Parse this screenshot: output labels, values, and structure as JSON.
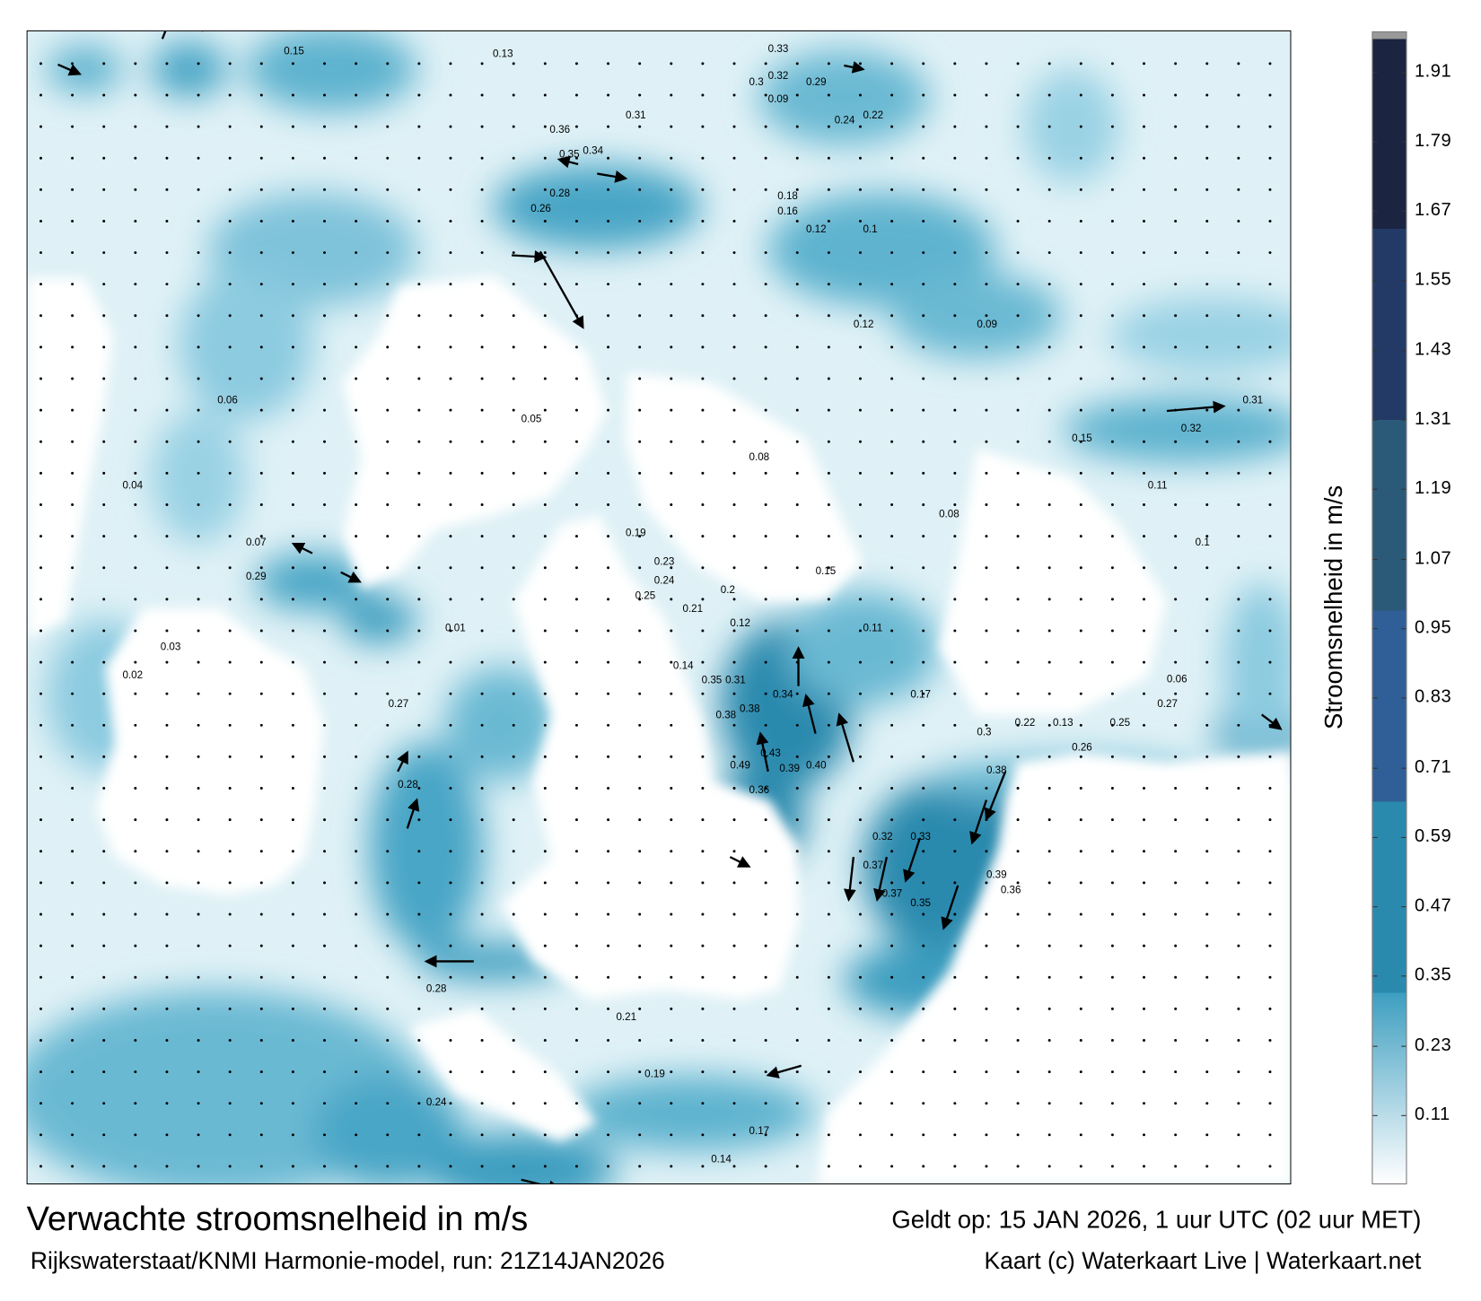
{
  "title": "Verwachte stroomsnelheid in m/s",
  "subtitle": "Rijkswaterstaat/KNMI Harmonie-model, run: 21Z14JAN2026",
  "valid_time": "Geldt op: 15 JAN 2026, 1 uur UTC (02 uur MET)",
  "credit": "Kaart (c) Waterkaart Live | Waterkaart.net",
  "colorbar": {
    "label": "Stroomsnelheid in m/s",
    "ticks": [
      "1.91",
      "1.79",
      "1.67",
      "1.55",
      "1.43",
      "1.31",
      "1.19",
      "1.07",
      "0.95",
      "0.83",
      "0.71",
      "0.59",
      "0.47",
      "0.35",
      "0.23",
      "0.11"
    ],
    "range": [
      0,
      1.97
    ],
    "colors": {
      "low": "#ffffff",
      "light": "#3d9ec0",
      "band1": "#2a8aae",
      "band2": "#2f5f96",
      "band3": "#2a5a78",
      "band4": "#233a66",
      "band5": "#1b2440",
      "cap": "#999999"
    }
  },
  "map": {
    "land_color": "#ffffff",
    "arrow_color": "#000000",
    "speed_labels": [
      "0.15",
      "0.13",
      "0.33",
      "0.32",
      "0.3",
      "0.09",
      "0.29",
      "0.36",
      "0.31",
      "0.35",
      "0.34",
      "0.22",
      "0.24",
      "0.28",
      "0.26",
      "0.18",
      "0.16",
      "0.1",
      "0.12",
      "0.38",
      "0.35",
      "0.31",
      "0.34",
      "0.38",
      "0.43",
      "0.39",
      "0.49",
      "0.40",
      "0.36",
      "0.28",
      "0.27",
      "0.29",
      "0.37",
      "0.38",
      "0.32",
      "0.33",
      "0.35",
      "0.37",
      "0.39",
      "0.36",
      "0.14",
      "0.12",
      "0.23",
      "0.19",
      "0.2",
      "0.21",
      "0.24",
      "0.25",
      "0.15",
      "0.11",
      "0.08",
      "0.05",
      "0.02",
      "0.03",
      "0.04",
      "0.06",
      "0.07",
      "0.01",
      "0.17",
      "0.22",
      "0.13",
      "0.26",
      "0.25",
      "0.27",
      "0.09",
      "0.12",
      "0.15",
      "0.11",
      "0.08",
      "0.3",
      "0.32",
      "0.31",
      "0.28",
      "0.24",
      "0.21",
      "0.19",
      "0.17",
      "0.14",
      "0.1",
      "0.06"
    ]
  }
}
